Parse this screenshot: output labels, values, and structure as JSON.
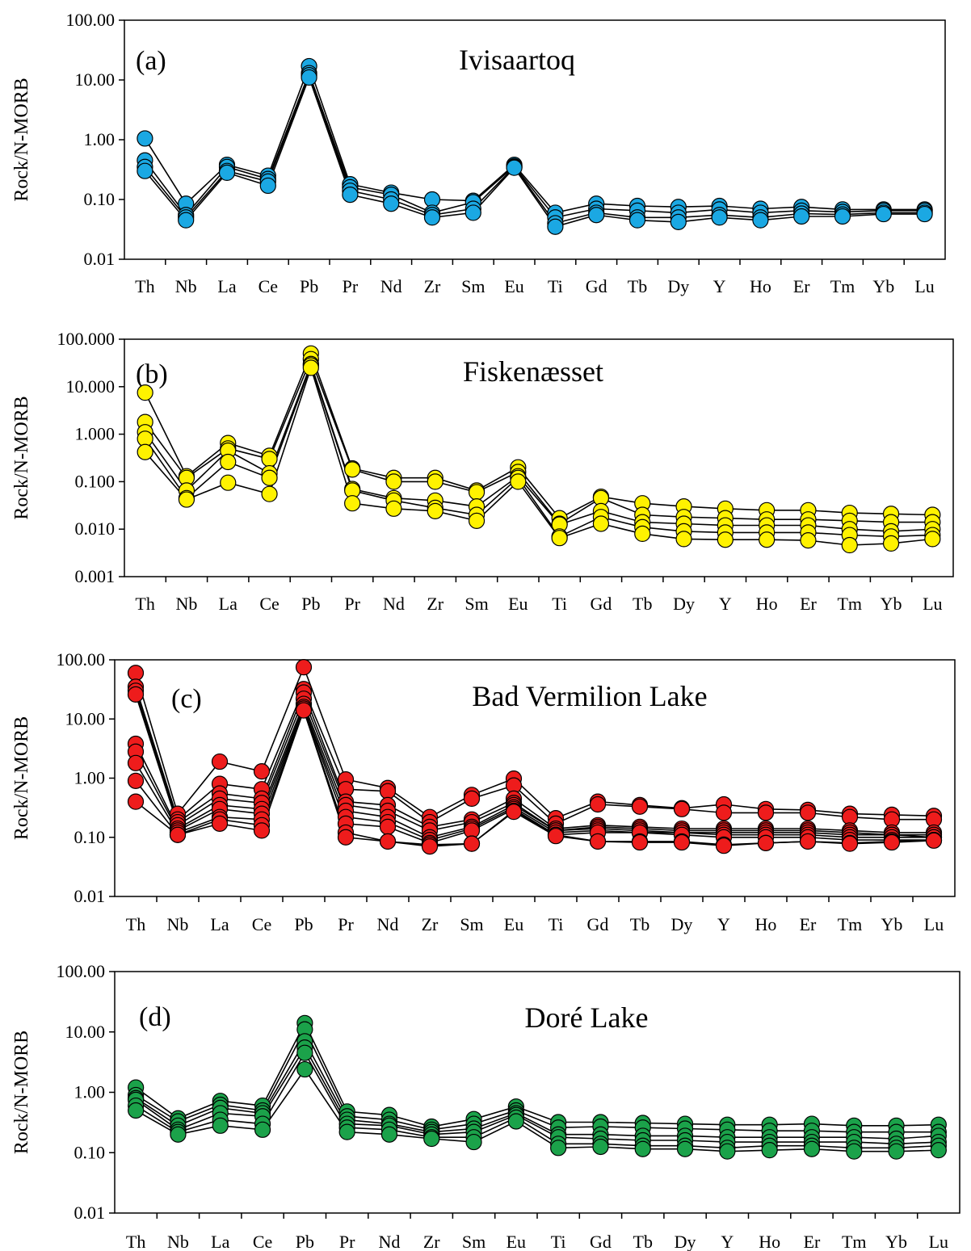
{
  "chart_data": [
    {
      "type": "line",
      "log_scale_y": true,
      "marker": "circle",
      "grid": false,
      "legend": "none",
      "panel_label": "(a)",
      "title": "Ivisaartoq",
      "ylabel": "Rock/N-MORB",
      "ylim": [
        0.01,
        100
      ],
      "y_ticks": [
        "0.01",
        "0.10",
        "1.00",
        "10.00",
        "100.00"
      ],
      "categories": [
        "Th",
        "Nb",
        "La",
        "Ce",
        "Pb",
        "Pr",
        "Nd",
        "Zr",
        "Sm",
        "Eu",
        "Ti",
        "Gd",
        "Tb",
        "Dy",
        "Y",
        "Ho",
        "Er",
        "Tm",
        "Yb",
        "Lu"
      ],
      "marker_color": "#1BA8E3",
      "series": [
        {
          "values": [
            1.05,
            0.085,
            0.38,
            0.25,
            17,
            0.18,
            0.13,
            0.1,
            0.095,
            0.38,
            0.06,
            0.085,
            0.078,
            0.075,
            0.078,
            0.07,
            0.075,
            0.068,
            0.068,
            0.068
          ]
        },
        {
          "values": [
            0.45,
            0.055,
            0.35,
            0.22,
            13,
            0.16,
            0.12,
            0.06,
            0.09,
            0.36,
            0.05,
            0.07,
            0.065,
            0.06,
            0.068,
            0.06,
            0.065,
            0.062,
            0.065,
            0.065
          ]
        },
        {
          "values": [
            0.35,
            0.05,
            0.3,
            0.2,
            12,
            0.14,
            0.1,
            0.055,
            0.07,
            0.35,
            0.04,
            0.06,
            0.05,
            0.05,
            0.055,
            0.05,
            0.058,
            0.056,
            0.06,
            0.06
          ]
        },
        {
          "values": [
            0.3,
            0.045,
            0.28,
            0.17,
            11,
            0.12,
            0.085,
            0.05,
            0.06,
            0.34,
            0.035,
            0.055,
            0.045,
            0.042,
            0.05,
            0.045,
            0.052,
            0.052,
            0.057,
            0.057
          ]
        }
      ]
    },
    {
      "type": "line",
      "log_scale_y": true,
      "marker": "circle",
      "grid": false,
      "legend": "none",
      "panel_label": "(b)",
      "title": "Fiskenæsset",
      "ylabel": "Rock/N-MORB",
      "ylim": [
        0.001,
        100
      ],
      "y_ticks": [
        "0.001",
        "0.010",
        "0.100",
        "1.000",
        "10.000",
        "100.000"
      ],
      "categories": [
        "Th",
        "Nb",
        "La",
        "Ce",
        "Pb",
        "Pr",
        "Nd",
        "Zr",
        "Sm",
        "Eu",
        "Ti",
        "Gd",
        "Tb",
        "Dy",
        "Y",
        "Ho",
        "Er",
        "Tm",
        "Yb",
        "Lu"
      ],
      "marker_color": "#FFF200",
      "series": [
        {
          "values": [
            7.5,
            0.13,
            0.65,
            0.35,
            50,
            0.19,
            0.12,
            0.12,
            0.065,
            0.2,
            0.017,
            0.048,
            0.035,
            0.03,
            0.027,
            0.025,
            0.025,
            0.022,
            0.021,
            0.02
          ]
        },
        {
          "values": [
            1.8,
            0.12,
            0.5,
            0.3,
            38,
            0.18,
            0.1,
            0.1,
            0.06,
            0.16,
            0.013,
            0.045,
            0.02,
            0.018,
            0.017,
            0.016,
            0.016,
            0.015,
            0.014,
            0.014
          ]
        },
        {
          "values": [
            1.1,
            0.065,
            0.45,
            0.15,
            30,
            0.07,
            0.045,
            0.04,
            0.03,
            0.13,
            0.0125,
            0.024,
            0.014,
            0.013,
            0.012,
            0.012,
            0.012,
            0.01,
            0.009,
            0.01
          ]
        },
        {
          "values": [
            0.8,
            0.045,
            0.26,
            0.12,
            28,
            0.065,
            0.04,
            0.028,
            0.02,
            0.12,
            0.007,
            0.018,
            0.011,
            0.009,
            0.0085,
            0.0085,
            0.0085,
            0.0075,
            0.007,
            0.0075
          ]
        },
        {
          "values": [
            0.42,
            0.042,
            0.095,
            0.055,
            25,
            0.035,
            0.027,
            0.024,
            0.015,
            0.1,
            0.0065,
            0.013,
            0.008,
            0.0062,
            0.006,
            0.006,
            0.0058,
            0.0046,
            0.005,
            0.0062
          ]
        }
      ]
    },
    {
      "type": "line",
      "log_scale_y": true,
      "marker": "circle",
      "grid": false,
      "legend": "none",
      "panel_label": "(c)",
      "title": "Bad Vermilion Lake",
      "ylabel": "Rock/N-MORB",
      "ylim": [
        0.01,
        100
      ],
      "y_ticks": [
        "0.01",
        "0.10",
        "1.00",
        "10.00",
        "100.00"
      ],
      "categories": [
        "Th",
        "Nb",
        "La",
        "Ce",
        "Pb",
        "Pr",
        "Nd",
        "Zr",
        "Sm",
        "Eu",
        "Ti",
        "Gd",
        "Tb",
        "Dy",
        "Y",
        "Ho",
        "Er",
        "Tm",
        "Yb",
        "Lu"
      ],
      "marker_color": "#EE1C1C",
      "series": [
        {
          "values": [
            60,
            0.25,
            1.9,
            1.3,
            75,
            0.95,
            0.68,
            0.22,
            0.52,
            0.98,
            0.21,
            0.4,
            0.35,
            0.31,
            0.36,
            0.3,
            0.29,
            0.25,
            0.24,
            0.23
          ]
        },
        {
          "values": [
            35,
            0.2,
            0.8,
            0.65,
            32,
            0.65,
            0.6,
            0.18,
            0.45,
            0.75,
            0.17,
            0.36,
            0.33,
            0.3,
            0.26,
            0.26,
            0.26,
            0.22,
            0.2,
            0.2
          ]
        },
        {
          "values": [
            30,
            0.18,
            0.55,
            0.45,
            28,
            0.4,
            0.35,
            0.15,
            0.2,
            0.45,
            0.14,
            0.16,
            0.15,
            0.14,
            0.14,
            0.14,
            0.14,
            0.13,
            0.12,
            0.12
          ]
        },
        {
          "values": [
            26,
            0.16,
            0.45,
            0.38,
            22,
            0.35,
            0.28,
            0.13,
            0.18,
            0.38,
            0.13,
            0.15,
            0.14,
            0.13,
            0.13,
            0.13,
            0.13,
            0.12,
            0.11,
            0.11
          ]
        },
        {
          "values": [
            3.8,
            0.14,
            0.35,
            0.3,
            18,
            0.28,
            0.22,
            0.1,
            0.15,
            0.35,
            0.13,
            0.14,
            0.13,
            0.12,
            0.12,
            0.12,
            0.12,
            0.11,
            0.11,
            0.1
          ]
        },
        {
          "values": [
            2.8,
            0.13,
            0.3,
            0.25,
            16,
            0.22,
            0.18,
            0.09,
            0.14,
            0.32,
            0.12,
            0.13,
            0.12,
            0.12,
            0.11,
            0.11,
            0.11,
            0.1,
            0.1,
            0.1
          ]
        },
        {
          "values": [
            1.8,
            0.12,
            0.22,
            0.2,
            15,
            0.17,
            0.15,
            0.08,
            0.13,
            0.3,
            0.11,
            0.12,
            0.12,
            0.11,
            0.1,
            0.1,
            0.1,
            0.09,
            0.09,
            0.09
          ]
        },
        {
          "values": [
            0.9,
            0.11,
            0.2,
            0.16,
            14,
            0.12,
            0.085,
            0.075,
            0.078,
            0.28,
            0.11,
            0.085,
            0.085,
            0.085,
            0.075,
            0.08,
            0.085,
            0.08,
            0.085,
            0.09
          ]
        },
        {
          "values": [
            0.4,
            0.11,
            0.17,
            0.13,
            14,
            0.1,
            0.085,
            0.07,
            0.078,
            0.27,
            0.105,
            0.085,
            0.082,
            0.082,
            0.072,
            0.08,
            0.085,
            0.078,
            0.082,
            0.088
          ]
        }
      ]
    },
    {
      "type": "line",
      "log_scale_y": true,
      "marker": "circle",
      "grid": false,
      "legend": "none",
      "panel_label": "(d)",
      "title": "Doré Lake",
      "ylabel": "Rock/N-MORB",
      "ylim": [
        0.01,
        100
      ],
      "y_ticks": [
        "0.01",
        "0.10",
        "1.00",
        "10.00",
        "100.00"
      ],
      "categories": [
        "Th",
        "Nb",
        "La",
        "Ce",
        "Pb",
        "Pr",
        "Nd",
        "Zr",
        "Sm",
        "Eu",
        "Ti",
        "Gd",
        "Tb",
        "Dy",
        "Y",
        "Ho",
        "Er",
        "Tm",
        "Yb",
        "Lu"
      ],
      "marker_color": "#1BA24A",
      "series": [
        {
          "values": [
            1.2,
            0.37,
            0.72,
            0.6,
            14,
            0.48,
            0.42,
            0.27,
            0.36,
            0.58,
            0.32,
            0.32,
            0.31,
            0.3,
            0.29,
            0.29,
            0.3,
            0.28,
            0.28,
            0.29
          ]
        },
        {
          "values": [
            0.9,
            0.33,
            0.62,
            0.5,
            11,
            0.4,
            0.35,
            0.24,
            0.3,
            0.5,
            0.26,
            0.27,
            0.26,
            0.25,
            0.24,
            0.23,
            0.23,
            0.22,
            0.22,
            0.22
          ]
        },
        {
          "values": [
            0.8,
            0.28,
            0.55,
            0.45,
            7,
            0.35,
            0.3,
            0.22,
            0.25,
            0.45,
            0.2,
            0.2,
            0.19,
            0.19,
            0.18,
            0.18,
            0.18,
            0.18,
            0.17,
            0.19
          ]
        },
        {
          "values": [
            0.75,
            0.24,
            0.45,
            0.4,
            5.5,
            0.3,
            0.28,
            0.2,
            0.22,
            0.42,
            0.18,
            0.17,
            0.16,
            0.16,
            0.15,
            0.15,
            0.15,
            0.15,
            0.14,
            0.15
          ]
        },
        {
          "values": [
            0.6,
            0.22,
            0.35,
            0.3,
            4.5,
            0.26,
            0.24,
            0.18,
            0.18,
            0.38,
            0.14,
            0.14,
            0.13,
            0.13,
            0.12,
            0.13,
            0.13,
            0.12,
            0.12,
            0.13
          ]
        },
        {
          "values": [
            0.5,
            0.2,
            0.28,
            0.24,
            2.4,
            0.22,
            0.2,
            0.17,
            0.15,
            0.33,
            0.12,
            0.125,
            0.115,
            0.115,
            0.105,
            0.11,
            0.115,
            0.105,
            0.105,
            0.11
          ]
        }
      ]
    }
  ]
}
